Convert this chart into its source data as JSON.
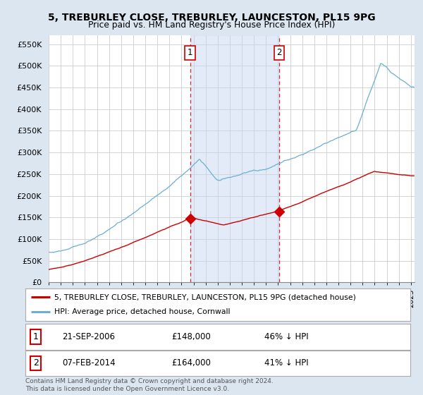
{
  "title_line1": "5, TREBURLEY CLOSE, TREBURLEY, LAUNCESTON, PL15 9PG",
  "title_line2": "Price paid vs. HM Land Registry's House Price Index (HPI)",
  "ylabel_ticks": [
    "£0",
    "£50K",
    "£100K",
    "£150K",
    "£200K",
    "£250K",
    "£300K",
    "£350K",
    "£400K",
    "£450K",
    "£500K",
    "£550K"
  ],
  "ytick_vals": [
    0,
    50000,
    100000,
    150000,
    200000,
    250000,
    300000,
    350000,
    400000,
    450000,
    500000,
    550000
  ],
  "ylim": [
    0,
    570000
  ],
  "xlim_start": 1995.0,
  "xlim_end": 2025.3,
  "hpi_color": "#6baed6",
  "sold_color": "#cc0000",
  "background_color": "#dce6f1",
  "plot_bg_color": "#ffffff",
  "grid_color": "#cccccc",
  "transaction1_x": 2006.72,
  "transaction1_y": 148000,
  "transaction2_x": 2014.09,
  "transaction2_y": 164000,
  "vline1_x": 2006.72,
  "vline2_x": 2014.09,
  "vspan_color": "#c6d9f0",
  "vspan_alpha": 0.5,
  "legend_line1": "5, TREBURLEY CLOSE, TREBURLEY, LAUNCESTON, PL15 9PG (detached house)",
  "legend_line2": "HPI: Average price, detached house, Cornwall",
  "footnote": "Contains HM Land Registry data © Crown copyright and database right 2024.\nThis data is licensed under the Open Government Licence v3.0."
}
